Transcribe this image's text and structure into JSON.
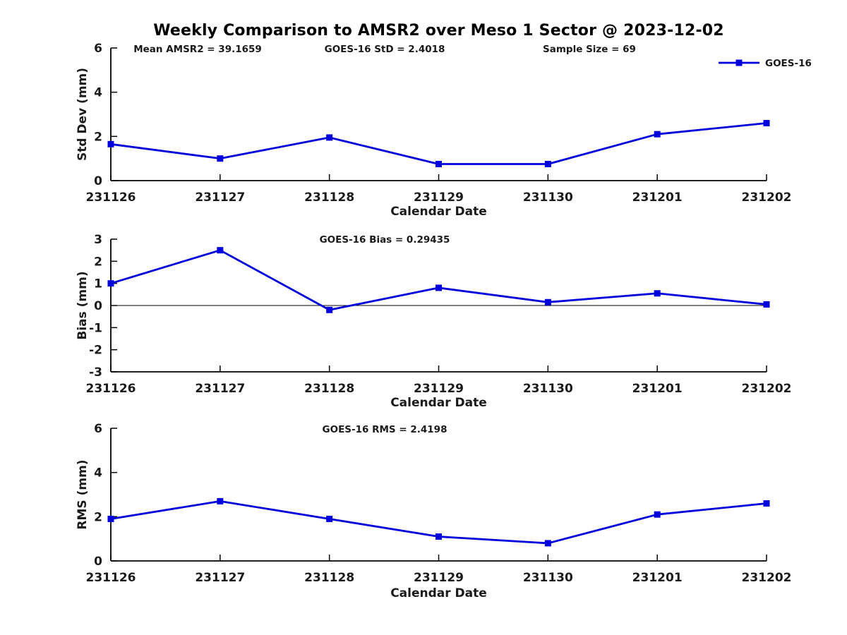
{
  "title": "Weekly Comparison to AMSR2 over Meso 1 Sector @ 2023-12-02",
  "colors": {
    "line": "#0000DD",
    "text": "#1a1a1a",
    "axis": "#000000",
    "zero_line": "#000000"
  },
  "xlabel": "Calendar Date",
  "categories": [
    "231126",
    "231127",
    "231128",
    "231129",
    "231130",
    "231201",
    "231202"
  ],
  "legend": {
    "label": "GOES-16",
    "position": "top-right"
  },
  "chart_data": [
    {
      "type": "line",
      "name": "std-dev",
      "annotations": [
        "Mean AMSR2 = 39.1659",
        "GOES-16 StD = 2.4018",
        "Sample Size = 69"
      ],
      "categories": [
        "231126",
        "231127",
        "231128",
        "231129",
        "231130",
        "231201",
        "231202"
      ],
      "series": [
        {
          "name": "GOES-16",
          "values": [
            1.65,
            1.0,
            1.95,
            0.75,
            0.75,
            2.1,
            2.6
          ]
        }
      ],
      "xlabel": "Calendar Date",
      "ylabel": "Std Dev (mm)",
      "ylim": [
        0,
        6
      ],
      "yticks": [
        0,
        2,
        4,
        6
      ],
      "grid": false,
      "legend": {
        "label": "GOES-16",
        "position": "top-right"
      }
    },
    {
      "type": "line",
      "name": "bias",
      "title": "GOES-16 Bias  = 0.29435",
      "categories": [
        "231126",
        "231127",
        "231128",
        "231129",
        "231130",
        "231201",
        "231202"
      ],
      "series": [
        {
          "name": "GOES-16",
          "values": [
            1.0,
            2.5,
            -0.2,
            0.8,
            0.15,
            0.55,
            0.05
          ]
        }
      ],
      "xlabel": "Calendar Date",
      "ylabel": "Bias (mm)",
      "ylim": [
        -3,
        3
      ],
      "yticks": [
        -3,
        -2,
        -1,
        0,
        1,
        2,
        3
      ],
      "zero_line": true,
      "grid": false
    },
    {
      "type": "line",
      "name": "rms",
      "title": "GOES-16 RMS = 2.4198",
      "categories": [
        "231126",
        "231127",
        "231128",
        "231129",
        "231130",
        "231201",
        "231202"
      ],
      "series": [
        {
          "name": "GOES-16",
          "values": [
            1.9,
            2.7,
            1.9,
            1.1,
            0.8,
            2.1,
            2.6
          ]
        }
      ],
      "xlabel": "Calendar Date",
      "ylabel": "RMS (mm)",
      "ylim": [
        0,
        6
      ],
      "yticks": [
        0,
        2,
        4,
        6
      ],
      "grid": false
    }
  ]
}
